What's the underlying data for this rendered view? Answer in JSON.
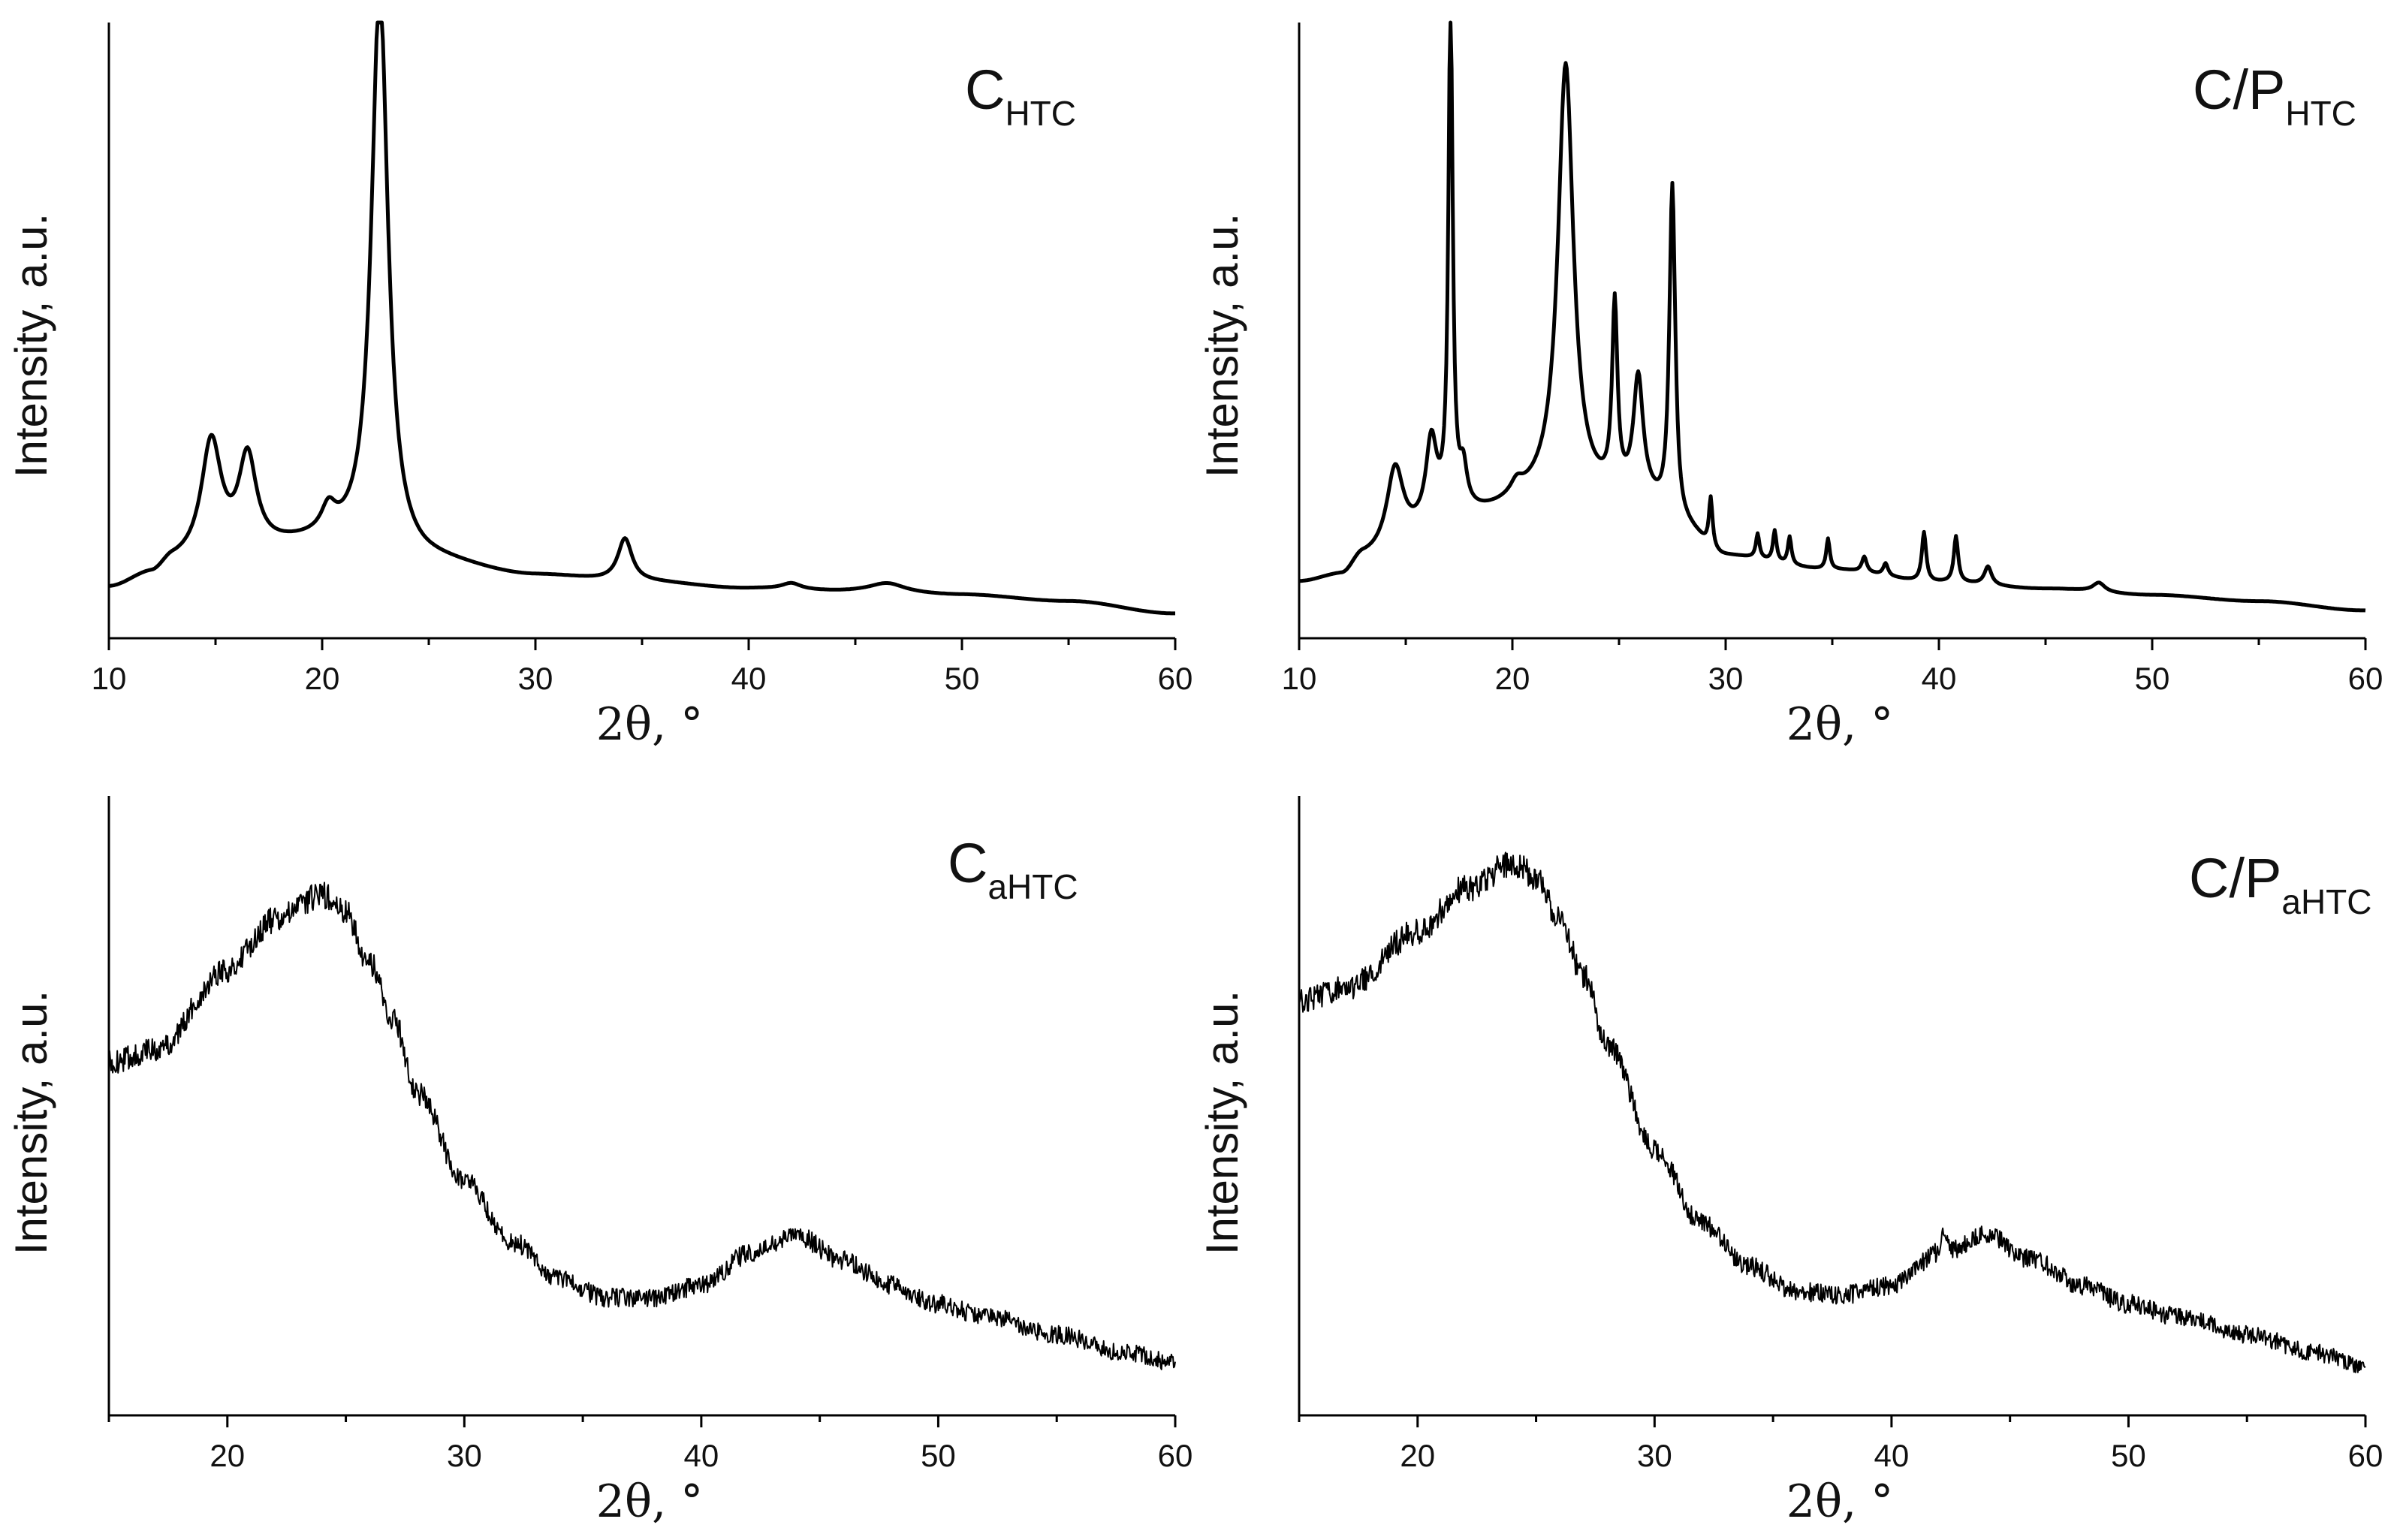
{
  "chart_data": [
    {
      "type": "line",
      "id": "c-htc",
      "label_main": "C",
      "label_sub": "HTC",
      "xlabel": "2θ, °",
      "ylabel": "Intensity, a.u.",
      "xlim": [
        10,
        60
      ],
      "ylim": [
        0,
        100
      ],
      "xticks": [
        10,
        20,
        30,
        40,
        50,
        60
      ],
      "y_ticks_shown": false,
      "noise": 0,
      "series": [
        {
          "name": "C_HTC",
          "baseline": [
            [
              10,
              8
            ],
            [
              12,
              10
            ],
            [
              13,
              12
            ],
            [
              20,
              15
            ],
            [
              25,
              12
            ],
            [
              30,
              10
            ],
            [
              35,
              9
            ],
            [
              40,
              8
            ],
            [
              45,
              7.5
            ],
            [
              50,
              7
            ],
            [
              55,
              6
            ],
            [
              60,
              4
            ]
          ],
          "peaks": [
            {
              "center": 14.8,
              "height": 19,
              "width": 0.85
            },
            {
              "center": 16.5,
              "height": 15,
              "width": 0.75
            },
            {
              "center": 20.3,
              "height": 4,
              "width": 0.6
            },
            {
              "center": 22.7,
              "height": 92,
              "width": 0.7
            },
            {
              "center": 34.2,
              "height": 7,
              "width": 0.6
            },
            {
              "center": 42.0,
              "height": 1,
              "width": 0.8
            },
            {
              "center": 46.5,
              "height": 1.5,
              "width": 1.5
            }
          ]
        }
      ]
    },
    {
      "type": "line",
      "id": "cp-htc",
      "label_main": "C/P",
      "label_sub": "HTC",
      "xlabel": "2θ, °",
      "ylabel": "Intensity, a.u.",
      "xlim": [
        10,
        60
      ],
      "ylim": [
        0,
        100
      ],
      "xticks": [
        10,
        20,
        30,
        40,
        50,
        60
      ],
      "y_ticks_shown": false,
      "noise": 0,
      "series": [
        {
          "name": "C/P_HTC",
          "baseline": [
            [
              10,
              9
            ],
            [
              12,
              10
            ],
            [
              13,
              13
            ],
            [
              18,
              20
            ],
            [
              22,
              23
            ],
            [
              26,
              22
            ],
            [
              28,
              17
            ],
            [
              30,
              13
            ],
            [
              35,
              11
            ],
            [
              40,
              9
            ],
            [
              45,
              8
            ],
            [
              50,
              7
            ],
            [
              55,
              6
            ],
            [
              60,
              4.5
            ]
          ],
          "peaks": [
            {
              "center": 14.5,
              "height": 13,
              "width": 0.7
            },
            {
              "center": 16.2,
              "height": 13,
              "width": 0.45
            },
            {
              "center": 17.1,
              "height": 82,
              "width": 0.18
            },
            {
              "center": 17.7,
              "height": 6,
              "width": 0.3
            },
            {
              "center": 20.2,
              "height": 2,
              "width": 0.5
            },
            {
              "center": 22.5,
              "height": 70,
              "width": 0.65
            },
            {
              "center": 24.8,
              "height": 30,
              "width": 0.22
            },
            {
              "center": 25.9,
              "height": 19,
              "width": 0.4
            },
            {
              "center": 27.5,
              "height": 55,
              "width": 0.25
            },
            {
              "center": 29.3,
              "height": 8,
              "width": 0.15
            },
            {
              "center": 31.5,
              "height": 4,
              "width": 0.15
            },
            {
              "center": 32.3,
              "height": 5,
              "width": 0.15
            },
            {
              "center": 33.0,
              "height": 4.5,
              "width": 0.15
            },
            {
              "center": 34.8,
              "height": 5,
              "width": 0.15
            },
            {
              "center": 36.5,
              "height": 2.5,
              "width": 0.2
            },
            {
              "center": 37.5,
              "height": 2,
              "width": 0.2
            },
            {
              "center": 39.3,
              "height": 8,
              "width": 0.18
            },
            {
              "center": 40.8,
              "height": 7.5,
              "width": 0.18
            },
            {
              "center": 42.3,
              "height": 3,
              "width": 0.3
            },
            {
              "center": 47.5,
              "height": 1.5,
              "width": 0.5
            }
          ]
        }
      ]
    },
    {
      "type": "line",
      "id": "c-ahtc",
      "label_main": "C",
      "label_sub": "aHTC",
      "xlabel": "2θ, °",
      "ylabel": "Intensity, a.u.",
      "xlim": [
        15,
        60
      ],
      "ylim": [
        0,
        100
      ],
      "xticks": [
        20,
        30,
        40,
        50,
        60
      ],
      "y_ticks_shown": false,
      "noise": 4.5,
      "series": [
        {
          "name": "C_aHTC",
          "baseline": [
            [
              15,
              57
            ],
            [
              17,
              59
            ],
            [
              20,
              72
            ],
            [
              22,
              80
            ],
            [
              24,
              84
            ],
            [
              25,
              81
            ],
            [
              26,
              73
            ],
            [
              27,
              64
            ],
            [
              28,
              52
            ],
            [
              30,
              38
            ],
            [
              32,
              28
            ],
            [
              34,
              22
            ],
            [
              36,
              19
            ],
            [
              38,
              19
            ],
            [
              40,
              21
            ],
            [
              42,
              26
            ],
            [
              44,
              29
            ],
            [
              46,
              25
            ],
            [
              48,
              21
            ],
            [
              50,
              18
            ],
            [
              52,
              16
            ],
            [
              55,
              13
            ],
            [
              58,
              10
            ],
            [
              60,
              8.5
            ]
          ],
          "peaks": []
        }
      ]
    },
    {
      "type": "line",
      "id": "cp-ahtc",
      "label_main": "C/P",
      "label_sub": "aHTC",
      "xlabel": "2θ, °",
      "ylabel": "Intensity, a.u.",
      "xlim": [
        15,
        60
      ],
      "ylim": [
        0,
        100
      ],
      "xticks": [
        20,
        30,
        40,
        50,
        60
      ],
      "y_ticks_shown": false,
      "noise": 4.5,
      "series": [
        {
          "name": "C/P_aHTC",
          "baseline": [
            [
              15,
              67
            ],
            [
              17,
              69
            ],
            [
              20,
              78
            ],
            [
              22,
              85
            ],
            [
              24,
              89
            ],
            [
              25,
              87
            ],
            [
              26,
              80
            ],
            [
              27,
              71
            ],
            [
              28,
              60
            ],
            [
              30,
              43
            ],
            [
              32,
              31
            ],
            [
              34,
              24
            ],
            [
              36,
              20
            ],
            [
              38,
              19.5
            ],
            [
              40,
              21
            ],
            [
              42,
              26
            ],
            [
              44,
              29
            ],
            [
              46,
              25
            ],
            [
              48,
              21
            ],
            [
              50,
              18
            ],
            [
              52,
              16
            ],
            [
              55,
              13
            ],
            [
              58,
              10
            ],
            [
              60,
              8
            ]
          ],
          "peaks": [
            {
              "center": 42.2,
              "height": 4,
              "width": 0.15
            }
          ]
        }
      ]
    }
  ]
}
